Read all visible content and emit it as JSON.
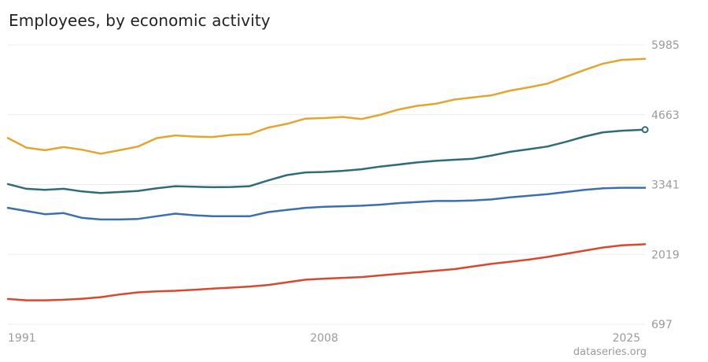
{
  "title": "Employees, by economic activity",
  "credit": "dataseries.org",
  "chart_data": {
    "type": "line",
    "title": "Employees, by economic activity",
    "xlabel": "",
    "ylabel": "",
    "xlim": [
      1991,
      2025.25
    ],
    "ylim": [
      697,
      5985
    ],
    "y_ticks": [
      "697",
      "2019",
      "3341",
      "4663",
      "5985"
    ],
    "x_ticks": [
      "1991",
      "2008",
      "2025"
    ],
    "grid": true,
    "legend": "none",
    "series": [
      {
        "color": "#e3a530",
        "x": [
          1991,
          1992,
          1993,
          1994,
          1995,
          1996,
          1997,
          1998,
          1999,
          2000,
          2001,
          2002,
          2003,
          2004,
          2005,
          2006,
          2007,
          2008,
          2009,
          2010,
          2011,
          2012,
          2013,
          2014,
          2015,
          2016,
          2017,
          2018,
          2019,
          2020,
          2021,
          2022,
          2023,
          2024,
          2025.25
        ],
        "values": [
          4222,
          4040,
          3990,
          4050,
          4000,
          3925,
          3990,
          4060,
          4220,
          4270,
          4250,
          4240,
          4280,
          4295,
          4420,
          4490,
          4590,
          4600,
          4620,
          4580,
          4660,
          4760,
          4830,
          4870,
          4950,
          4990,
          5030,
          5120,
          5180,
          5250,
          5380,
          5510,
          5630,
          5700,
          5720
        ]
      },
      {
        "color": "#2f6b78",
        "x": [
          1991,
          1992,
          1993,
          1994,
          1995,
          1996,
          1997,
          1998,
          1999,
          2000,
          2001,
          2002,
          2003,
          2004,
          2005,
          2006,
          2007,
          2008,
          2009,
          2010,
          2011,
          2012,
          2013,
          2014,
          2015,
          2016,
          2017,
          2018,
          2019,
          2020,
          2021,
          2022,
          2023,
          2024,
          2025.25
        ],
        "values": [
          3350,
          3260,
          3240,
          3260,
          3210,
          3180,
          3200,
          3220,
          3270,
          3310,
          3300,
          3290,
          3295,
          3310,
          3420,
          3520,
          3570,
          3580,
          3600,
          3630,
          3680,
          3720,
          3760,
          3790,
          3810,
          3830,
          3890,
          3960,
          4010,
          4060,
          4150,
          4250,
          4330,
          4360,
          4380
        ]
      },
      {
        "color": "#3b6fb0",
        "x": [
          1991,
          1992,
          1993,
          1994,
          1995,
          1996,
          1997,
          1998,
          1999,
          2000,
          2001,
          2002,
          2003,
          2004,
          2005,
          2006,
          2007,
          2008,
          2009,
          2010,
          2011,
          2012,
          2013,
          2014,
          2015,
          2016,
          2017,
          2018,
          2019,
          2020,
          2021,
          2022,
          2023,
          2024,
          2025.25
        ],
        "values": [
          2900,
          2840,
          2780,
          2800,
          2710,
          2680,
          2680,
          2690,
          2740,
          2790,
          2760,
          2740,
          2740,
          2740,
          2820,
          2860,
          2900,
          2920,
          2930,
          2940,
          2960,
          2990,
          3010,
          3030,
          3030,
          3040,
          3060,
          3100,
          3130,
          3160,
          3200,
          3240,
          3270,
          3280,
          3280
        ]
      },
      {
        "color": "#d9472e",
        "x": [
          1991,
          1992,
          1993,
          1994,
          1995,
          1996,
          1997,
          1998,
          1999,
          2000,
          2001,
          2002,
          2003,
          2004,
          2005,
          2006,
          2007,
          2008,
          2009,
          2010,
          2011,
          2012,
          2013,
          2014,
          2015,
          2016,
          2017,
          2018,
          2019,
          2020,
          2021,
          2022,
          2023,
          2024,
          2025.25
        ],
        "values": [
          1175,
          1150,
          1150,
          1160,
          1180,
          1210,
          1260,
          1300,
          1320,
          1330,
          1350,
          1370,
          1390,
          1410,
          1440,
          1490,
          1540,
          1560,
          1575,
          1590,
          1620,
          1650,
          1680,
          1710,
          1740,
          1790,
          1840,
          1880,
          1920,
          1970,
          2030,
          2090,
          2150,
          2190,
          2210
        ]
      }
    ]
  }
}
